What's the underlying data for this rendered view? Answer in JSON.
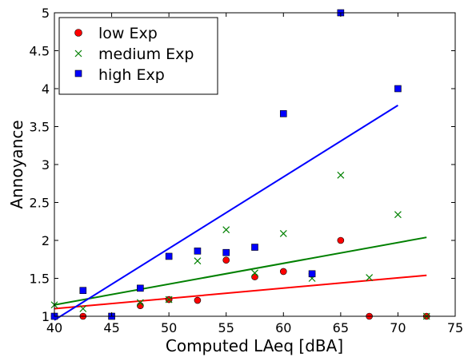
{
  "chart_data": {
    "type": "scatter",
    "xlabel": "Computed LAeq [dBA]",
    "ylabel": "Annoyance",
    "xlim": [
      40,
      75
    ],
    "ylim": [
      1,
      5
    ],
    "xticks": [
      "40",
      "45",
      "50",
      "55",
      "60",
      "65",
      "70",
      "75"
    ],
    "yticks": [
      "1",
      "1.5",
      "2",
      "2.5",
      "3",
      "3.5",
      "4",
      "4.5",
      "5"
    ],
    "legend_position": "top-left",
    "series": [
      {
        "name": "low Exp",
        "marker": "circle",
        "color": "#ff0000",
        "points": [
          [
            40,
            1.0
          ],
          [
            42.5,
            1.0
          ],
          [
            47.5,
            1.14
          ],
          [
            50,
            1.22
          ],
          [
            52.5,
            1.21
          ],
          [
            55,
            1.74
          ],
          [
            57.5,
            1.52
          ],
          [
            60,
            1.59
          ],
          [
            62.5,
            1.56
          ],
          [
            65,
            2.0
          ],
          [
            67.5,
            1.0
          ],
          [
            72.5,
            1.0
          ]
        ],
        "fit": [
          [
            40,
            1.1
          ],
          [
            72.5,
            1.54
          ]
        ]
      },
      {
        "name": "medium Exp",
        "marker": "x",
        "color": "#008000",
        "points": [
          [
            40,
            1.15
          ],
          [
            42.5,
            1.1
          ],
          [
            47.5,
            1.18
          ],
          [
            50,
            1.22
          ],
          [
            52.5,
            1.73
          ],
          [
            55,
            2.14
          ],
          [
            57.5,
            1.57
          ],
          [
            60,
            2.09
          ],
          [
            62.5,
            1.5
          ],
          [
            65,
            2.86
          ],
          [
            67.5,
            1.51
          ],
          [
            70,
            2.34
          ],
          [
            72.5,
            1.0
          ]
        ],
        "fit": [
          [
            40,
            1.15
          ],
          [
            72.5,
            2.04
          ]
        ]
      },
      {
        "name": "high Exp",
        "marker": "square",
        "color": "#0000ff",
        "points": [
          [
            40,
            1.0
          ],
          [
            42.5,
            1.34
          ],
          [
            45,
            1.0
          ],
          [
            47.5,
            1.37
          ],
          [
            50,
            1.79
          ],
          [
            52.5,
            1.86
          ],
          [
            55,
            1.84
          ],
          [
            57.5,
            1.91
          ],
          [
            60,
            3.67
          ],
          [
            62.5,
            1.56
          ],
          [
            65,
            5.0
          ],
          [
            70,
            4.0
          ]
        ],
        "fit": [
          [
            40,
            0.95
          ],
          [
            70,
            3.78
          ]
        ]
      }
    ]
  }
}
